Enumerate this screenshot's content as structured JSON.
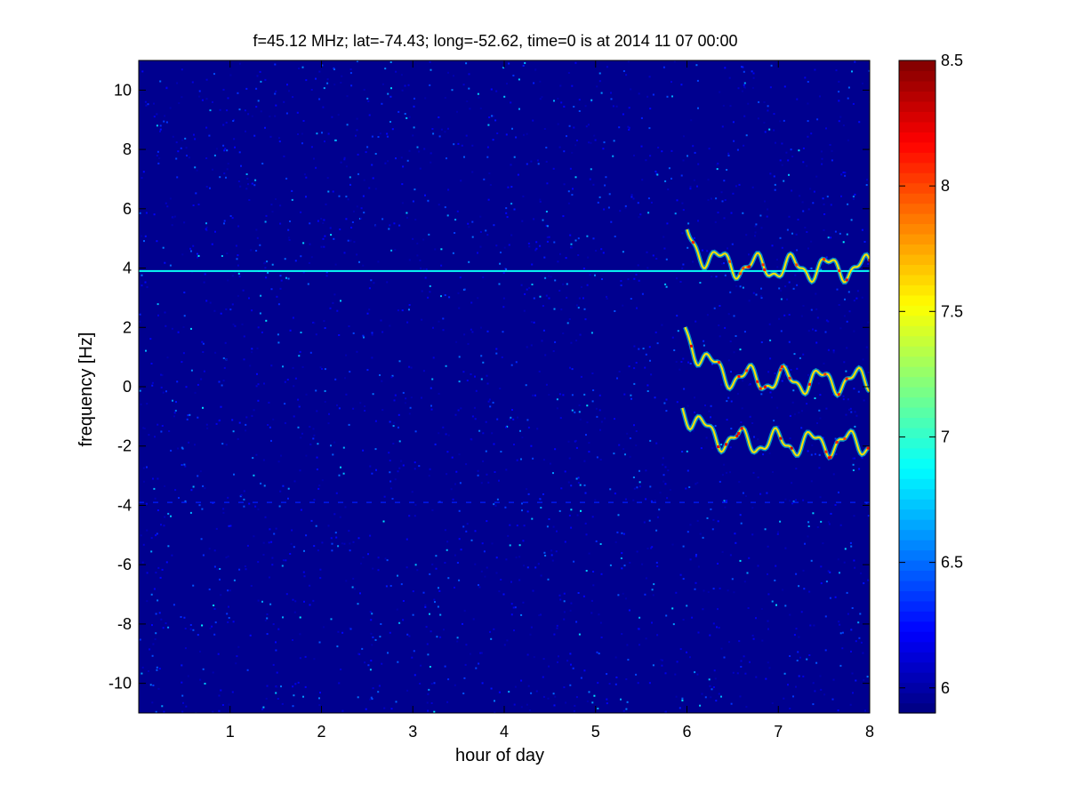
{
  "window": {
    "title": ""
  },
  "chart_data": {
    "type": "heatmap",
    "title": "f=45.12 MHz;  lat=-74.43; long=-52.62, time=0 is at 2014 11 07 00:00",
    "xlabel": "hour of day",
    "ylabel": "frequency [Hz]",
    "xlim": [
      0,
      8
    ],
    "ylim": [
      -11,
      11
    ],
    "xticks": [
      1,
      2,
      3,
      4,
      5,
      6,
      7,
      8
    ],
    "xtick_labels": [
      "1",
      "2",
      "3",
      "4",
      "5",
      "6",
      "7",
      "8"
    ],
    "yticks": [
      -10,
      -8,
      -6,
      -4,
      -2,
      0,
      2,
      4,
      6,
      8,
      10
    ],
    "ytick_labels": [
      "-10",
      "-8",
      "-6",
      "-4",
      "-2",
      "0",
      "2",
      "4",
      "6",
      "8",
      "10"
    ],
    "colormap": "jet",
    "clim": [
      5.9,
      8.5
    ],
    "colorbar_ticks": [
      6,
      6.5,
      7,
      7.5,
      8,
      8.5
    ],
    "colorbar_labels": [
      "6",
      "6.5",
      "7",
      "7.5",
      "8",
      "8.5"
    ],
    "background_level": 6.0,
    "features": [
      {
        "name": "constant line",
        "freq": 3.9,
        "t_start": 0.0,
        "t_end": 8.0,
        "level": 6.9
      },
      {
        "name": "weak line",
        "freq": -3.9,
        "t_start": 0.0,
        "t_end": 8.0,
        "level": 6.3
      },
      {
        "name": "upper trace",
        "t_start": 6.0,
        "t_end": 8.0,
        "freq_start": 5.1,
        "freq_mean": 4.0,
        "level": 7.6
      },
      {
        "name": "middle trace",
        "t_start": 5.98,
        "t_end": 8.0,
        "freq_start": 2.0,
        "freq_mean": 0.2,
        "level": 7.6
      },
      {
        "name": "lower trace",
        "t_start": 5.95,
        "t_end": 8.0,
        "freq_start": -0.6,
        "freq_mean": -1.9,
        "level": 7.6
      }
    ],
    "grid": false,
    "legend": "none"
  }
}
